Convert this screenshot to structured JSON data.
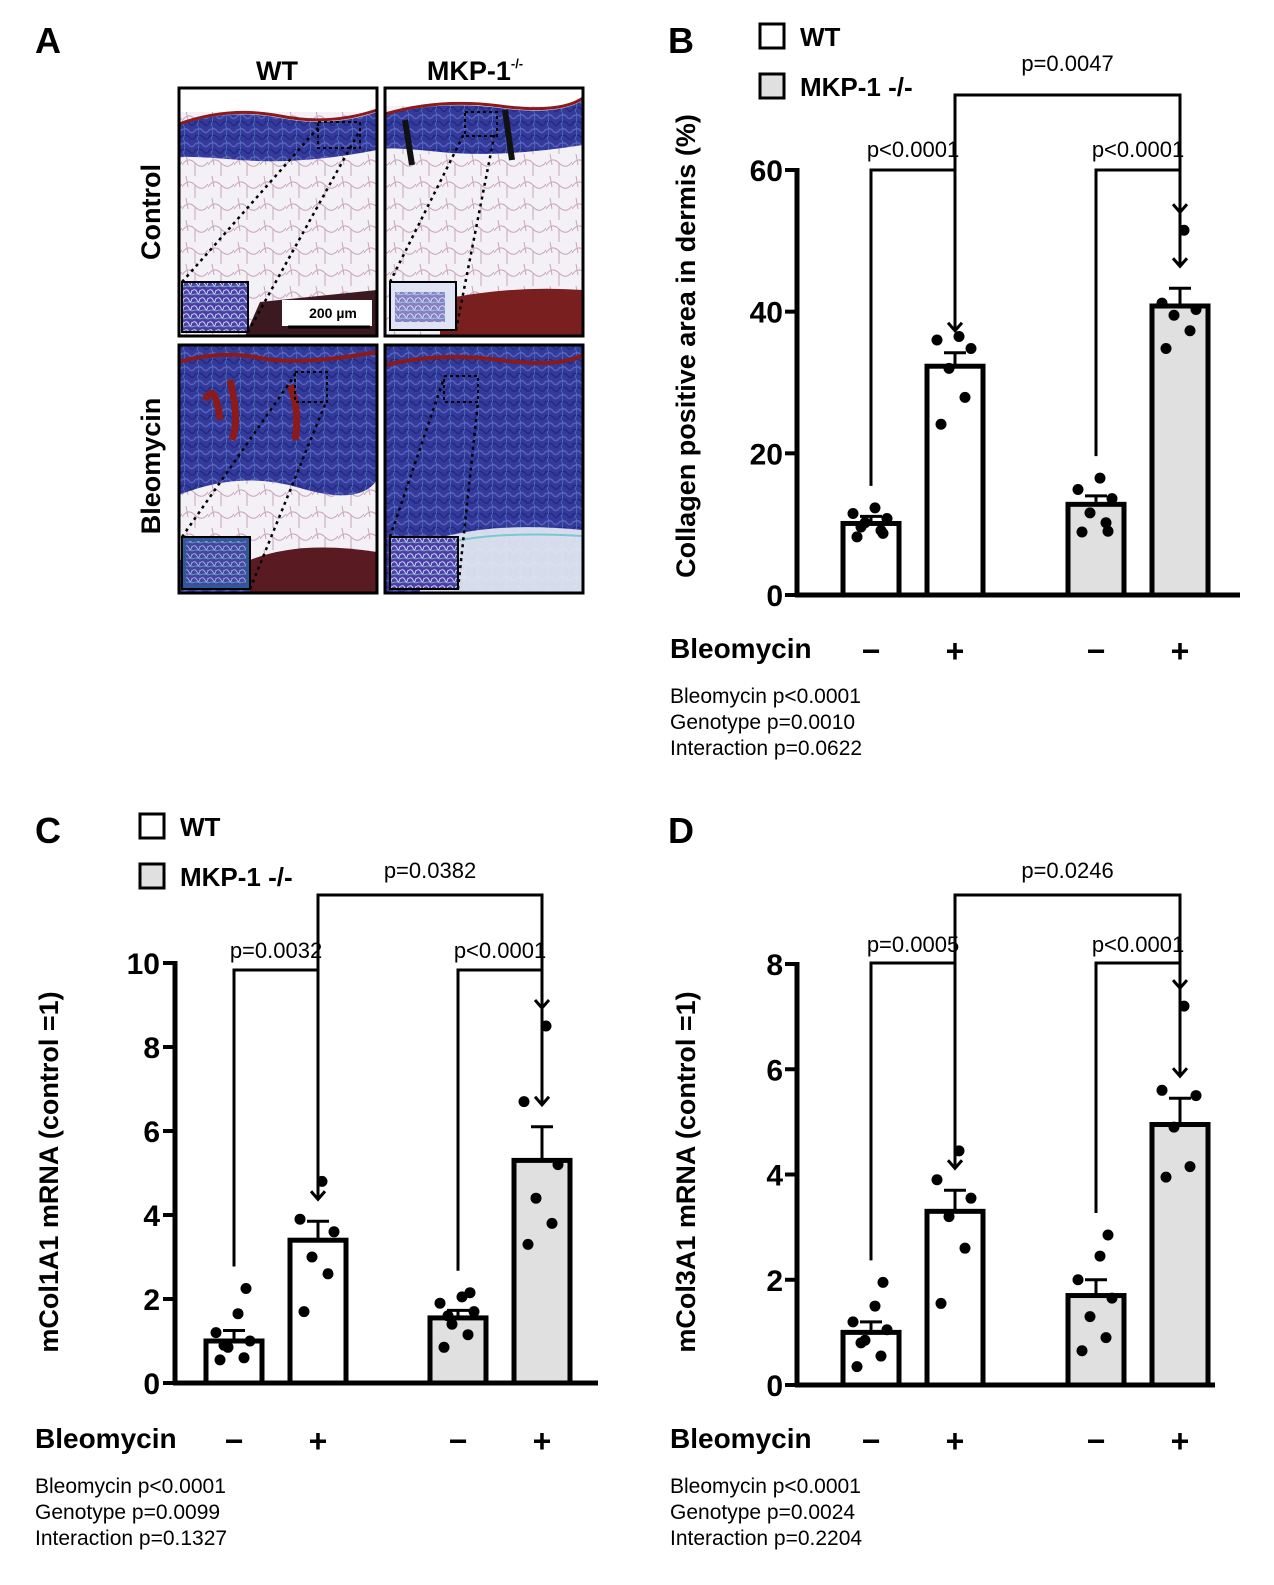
{
  "colors": {
    "wt_fill": "#ffffff",
    "ko_fill": "#dfe0df",
    "stroke": "#000000",
    "blue_stain": "#3b3fa0",
    "dermis_dark": "#2a2f8f",
    "red_stain": "#8b1a1a",
    "fat_bg": "#f2eef4",
    "cyan_fibers": "#7ac8d2"
  },
  "panel_a": {
    "letter": "A",
    "col_wt": "WT",
    "col_ko": "MKP-1",
    "col_ko_sup": "-/-",
    "row_control": "Control",
    "row_bleomycin": "Bleomycin",
    "scale_bar": "200 µm"
  },
  "chart_data": [
    {
      "panel": "B",
      "type": "bar",
      "legend": [
        "WT",
        "MKP-1 -/-"
      ],
      "categories": [
        "WT −",
        "WT +",
        "MKP-1 −/− −",
        "MKP-1 −/− +"
      ],
      "bleomycin_label": "Bleomycin",
      "treatment_marks": [
        "−",
        "+",
        "−",
        "+"
      ],
      "values": [
        10.1,
        32.3,
        12.8,
        40.8
      ],
      "sem": [
        1.0,
        1.9,
        1.2,
        2.5
      ],
      "points": [
        [
          8.2,
          9.1,
          10.2,
          10.8,
          11.5,
          12.3,
          8.7,
          9.6
        ],
        [
          24.1,
          27.9,
          32.0,
          34.8,
          36.0,
          36.5
        ],
        [
          8.9,
          10.2,
          11.6,
          13.6,
          14.9,
          16.5,
          9.0
        ],
        [
          34.8,
          37.3,
          39.5,
          40.3,
          41.2,
          51.5
        ]
      ],
      "ylabel": "Collagen positive area in dermis (%)",
      "ylim": [
        0,
        60
      ],
      "yticks": [
        0,
        20,
        40,
        60
      ],
      "comparisons": [
        {
          "from": 0,
          "to": 1,
          "label": "p<0.0001"
        },
        {
          "from": 2,
          "to": 3,
          "label": "p<0.0001"
        },
        {
          "from": 1,
          "to": 3,
          "label": "p=0.0047"
        }
      ],
      "stats": [
        "Bleomycin p<0.0001",
        "Genotype  p=0.0010",
        "Interaction p=0.0622"
      ]
    },
    {
      "panel": "C",
      "type": "bar",
      "legend": [
        "WT",
        "MKP-1 -/-"
      ],
      "categories": [
        "WT −",
        "WT +",
        "MKP-1 −/− −",
        "MKP-1 −/− +"
      ],
      "bleomycin_label": "Bleomycin",
      "treatment_marks": [
        "−",
        "+",
        "−",
        "+"
      ],
      "values": [
        1.0,
        3.4,
        1.55,
        5.3
      ],
      "sem": [
        0.25,
        0.45,
        0.18,
        0.8
      ],
      "points": [
        [
          0.55,
          0.6,
          0.85,
          1.0,
          1.2,
          1.65,
          2.25,
          0.9
        ],
        [
          1.7,
          2.6,
          3.0,
          3.6,
          3.9,
          4.8
        ],
        [
          0.85,
          1.15,
          1.4,
          1.7,
          1.9,
          2.05,
          2.15,
          1.6
        ],
        [
          3.3,
          3.8,
          4.4,
          5.2,
          6.7,
          8.5
        ]
      ],
      "ylabel": "mCol1A1 mRNA (control =1)",
      "ylim": [
        0,
        10
      ],
      "yticks": [
        0,
        2,
        4,
        6,
        8,
        10
      ],
      "comparisons": [
        {
          "from": 0,
          "to": 1,
          "label": "p=0.0032"
        },
        {
          "from": 2,
          "to": 3,
          "label": "p<0.0001"
        },
        {
          "from": 1,
          "to": 3,
          "label": "p=0.0382"
        }
      ],
      "stats": [
        "Bleomycin p<0.0001",
        "Genotype  p=0.0099",
        "Interaction p=0.1327"
      ]
    },
    {
      "panel": "D",
      "type": "bar",
      "legend": [],
      "categories": [
        "WT −",
        "WT +",
        "MKP-1 −/− −",
        "MKP-1 −/− +"
      ],
      "bleomycin_label": "Bleomycin",
      "treatment_marks": [
        "−",
        "+",
        "−",
        "+"
      ],
      "values": [
        1.0,
        3.3,
        1.7,
        4.95
      ],
      "sem": [
        0.2,
        0.4,
        0.3,
        0.5
      ],
      "points": [
        [
          0.35,
          0.55,
          0.85,
          1.05,
          1.2,
          1.5,
          1.95,
          0.8
        ],
        [
          1.55,
          2.6,
          3.2,
          3.55,
          3.9,
          4.45
        ],
        [
          0.65,
          0.9,
          1.3,
          1.65,
          2.0,
          2.45,
          2.85
        ],
        [
          3.95,
          4.15,
          4.9,
          5.5,
          5.6,
          7.2
        ]
      ],
      "ylabel": "mCol3A1 mRNA (control =1)",
      "ylim": [
        0,
        8
      ],
      "yticks": [
        0,
        2,
        4,
        6,
        8
      ],
      "comparisons": [
        {
          "from": 0,
          "to": 1,
          "label": "p=0.0005"
        },
        {
          "from": 2,
          "to": 3,
          "label": "p<0.0001"
        },
        {
          "from": 1,
          "to": 3,
          "label": "p=0.0246"
        }
      ],
      "stats": [
        "Bleomycin p<0.0001",
        "Genotype  p=0.0024",
        "Interaction p=0.2204"
      ]
    }
  ]
}
